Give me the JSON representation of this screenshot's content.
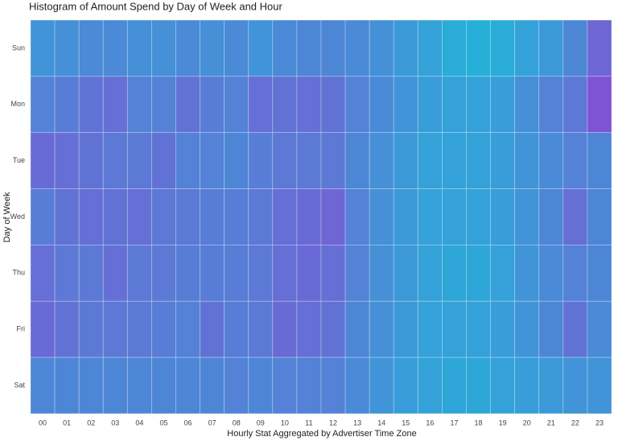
{
  "chart_data": {
    "type": "heatmap",
    "title": "Histogram of Amount Spend by Day of Week and Hour",
    "x_label": "Hourly Stat Aggregated by Advertiser Time Zone",
    "y_label": "Day of Week",
    "x_categories": [
      "00",
      "01",
      "02",
      "03",
      "04",
      "05",
      "06",
      "07",
      "08",
      "09",
      "10",
      "11",
      "12",
      "13",
      "14",
      "15",
      "16",
      "17",
      "18",
      "19",
      "20",
      "21",
      "22",
      "23"
    ],
    "y_categories": [
      "Sun",
      "Mon",
      "Tue",
      "Wed",
      "Thu",
      "Fri",
      "Sat"
    ],
    "color_scale": [
      "#6935cc",
      "#00a2d2"
    ],
    "values": [
      [
        0.7,
        0.65,
        0.6,
        0.6,
        0.65,
        0.65,
        0.6,
        0.65,
        0.6,
        0.7,
        0.6,
        0.55,
        0.55,
        0.6,
        0.65,
        0.75,
        0.85,
        0.95,
        1.0,
        0.95,
        0.85,
        0.75,
        0.55,
        0.2
      ],
      [
        0.5,
        0.45,
        0.35,
        0.3,
        0.5,
        0.5,
        0.35,
        0.45,
        0.5,
        0.3,
        0.35,
        0.3,
        0.35,
        0.5,
        0.6,
        0.7,
        0.8,
        0.85,
        0.85,
        0.8,
        0.65,
        0.5,
        0.4,
        0.0
      ],
      [
        0.25,
        0.3,
        0.35,
        0.4,
        0.4,
        0.35,
        0.5,
        0.5,
        0.55,
        0.45,
        0.4,
        0.4,
        0.4,
        0.55,
        0.65,
        0.75,
        0.85,
        0.85,
        0.85,
        0.8,
        0.7,
        0.6,
        0.5,
        0.55
      ],
      [
        0.45,
        0.35,
        0.3,
        0.35,
        0.3,
        0.4,
        0.4,
        0.45,
        0.45,
        0.4,
        0.3,
        0.25,
        0.2,
        0.5,
        0.65,
        0.75,
        0.85,
        0.85,
        0.85,
        0.8,
        0.7,
        0.55,
        0.3,
        0.55
      ],
      [
        0.3,
        0.4,
        0.4,
        0.3,
        0.4,
        0.4,
        0.45,
        0.45,
        0.45,
        0.4,
        0.3,
        0.25,
        0.3,
        0.5,
        0.65,
        0.75,
        0.85,
        0.9,
        0.9,
        0.85,
        0.7,
        0.6,
        0.5,
        0.55
      ],
      [
        0.25,
        0.35,
        0.4,
        0.4,
        0.4,
        0.45,
        0.5,
        0.35,
        0.45,
        0.4,
        0.25,
        0.3,
        0.35,
        0.55,
        0.65,
        0.75,
        0.85,
        0.85,
        0.85,
        0.8,
        0.7,
        0.55,
        0.35,
        0.6
      ],
      [
        0.55,
        0.55,
        0.55,
        0.55,
        0.55,
        0.55,
        0.55,
        0.55,
        0.5,
        0.55,
        0.5,
        0.5,
        0.5,
        0.6,
        0.7,
        0.8,
        0.85,
        0.9,
        0.9,
        0.85,
        0.8,
        0.75,
        0.7,
        0.7
      ]
    ]
  }
}
